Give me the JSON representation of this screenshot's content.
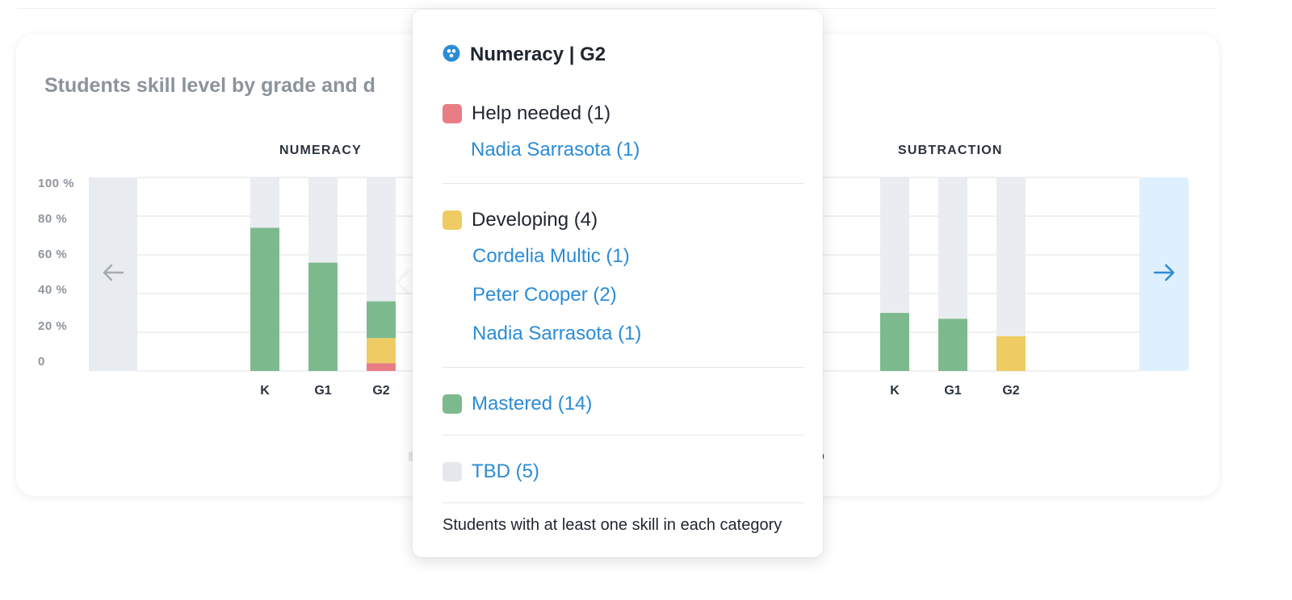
{
  "card": {
    "title": "Students skill level by grade and d"
  },
  "colors": {
    "help_needed": "#e97d86",
    "developing": "#efcb63",
    "mastered": "#7cba8e",
    "tbd": "#e9ecf0",
    "link": "#2b8cd6",
    "nav_right_bg": "#def0fd",
    "nav_left_bg": "#e8ebef"
  },
  "panels": [
    {
      "title": "NUMERACY"
    },
    {
      "title": "SUBTRACTION"
    }
  ],
  "legend_hint": {
    "left": "",
    "right": "D"
  },
  "nav": {
    "prev_icon": "arrow-left-icon",
    "next_icon": "arrow-right-icon"
  },
  "chart_data": [
    {
      "type": "bar",
      "title": "NUMERACY",
      "categories": [
        "K",
        "G1",
        "G2"
      ],
      "y_ticks": [
        "100 %",
        "80 %",
        "60 %",
        "40 %",
        "20 %",
        "0"
      ],
      "ylim": [
        0,
        100
      ],
      "grid": true,
      "stacked": true,
      "series": [
        {
          "name": "Help needed",
          "values": [
            0,
            0,
            4
          ]
        },
        {
          "name": "Developing",
          "values": [
            0,
            0,
            13
          ]
        },
        {
          "name": "Mastered",
          "values": [
            74,
            56,
            19
          ]
        },
        {
          "name": "TBD",
          "values": [
            26,
            44,
            64
          ]
        }
      ]
    },
    {
      "type": "bar",
      "title": "SUBTRACTION",
      "categories": [
        "K",
        "G1",
        "G2"
      ],
      "ylim": [
        0,
        100
      ],
      "grid": true,
      "stacked": true,
      "series": [
        {
          "name": "Help needed",
          "values": [
            0,
            0,
            0
          ]
        },
        {
          "name": "Developing",
          "values": [
            0,
            0,
            18
          ]
        },
        {
          "name": "Mastered",
          "values": [
            30,
            27,
            0
          ]
        },
        {
          "name": "TBD",
          "values": [
            70,
            73,
            82
          ]
        }
      ]
    }
  ],
  "tooltip": {
    "icon": "skill-group-icon",
    "title": "Numeracy | G2",
    "help_needed": {
      "label": "Help needed (1)",
      "students": [
        "Nadia Sarrasota (1)"
      ]
    },
    "developing": {
      "label": "Developing (4)",
      "students": [
        "Cordelia Multic (1)",
        "Peter Cooper (2)",
        "Nadia Sarrasota (1)"
      ]
    },
    "mastered": {
      "label": "Mastered (14)"
    },
    "tbd": {
      "label": "TBD (5)"
    },
    "footer": "Students with at least one skill in each category"
  }
}
